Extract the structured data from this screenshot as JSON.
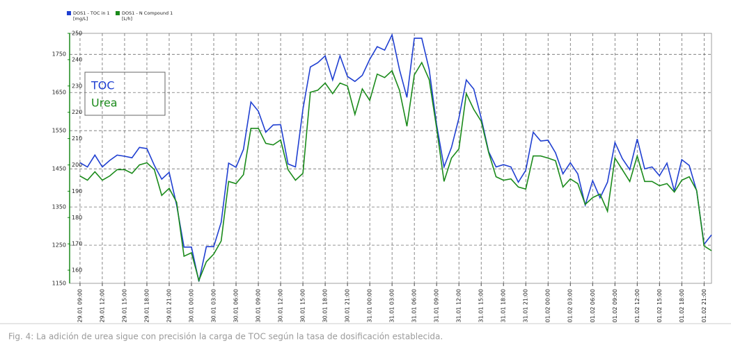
{
  "chart_data": {
    "type": "line",
    "caption": "Fig. 4: La adición de urea sigue con precisión la carga de TOC según la tasa de dosificación establecida.",
    "annotations": [
      {
        "text": "TOC",
        "color": "#1f3fd1"
      },
      {
        "text": "Urea",
        "color": "#1a8a1a"
      }
    ],
    "x": [
      "29.01 09:00",
      "29.01 10:00",
      "29.01 11:00",
      "29.01 12:00",
      "29.01 13:00",
      "29.01 14:00",
      "29.01 15:00",
      "29.01 16:00",
      "29.01 17:00",
      "29.01 18:00",
      "29.01 19:00",
      "29.01 20:00",
      "29.01 21:00",
      "29.01 22:00",
      "29.01 23:00",
      "30.01 00:00",
      "30.01 01:00",
      "30.01 02:00",
      "30.01 03:00",
      "30.01 04:00",
      "30.01 05:00",
      "30.01 06:00",
      "30.01 07:00",
      "30.01 08:00",
      "30.01 09:00",
      "30.01 10:00",
      "30.01 11:00",
      "30.01 12:00",
      "30.01 13:00",
      "30.01 14:00",
      "30.01 15:00",
      "30.01 16:00",
      "30.01 17:00",
      "30.01 18:00",
      "30.01 19:00",
      "30.01 20:00",
      "30.01 21:00",
      "30.01 22:00",
      "30.01 23:00",
      "31.01 00:00",
      "31.01 01:00",
      "31.01 02:00",
      "31.01 03:00",
      "31.01 04:00",
      "31.01 05:00",
      "31.01 06:00",
      "31.01 07:00",
      "31.01 08:00",
      "31.01 09:00",
      "31.01 10:00",
      "31.01 11:00",
      "31.01 12:00",
      "31.01 13:00",
      "31.01 14:00",
      "31.01 15:00",
      "31.01 16:00",
      "31.01 17:00",
      "31.01 18:00",
      "31.01 19:00",
      "31.01 20:00",
      "31.01 21:00",
      "31.01 22:00",
      "31.01 23:00",
      "01.02 00:00",
      "01.02 01:00",
      "01.02 02:00",
      "01.02 03:00",
      "01.02 04:00",
      "01.02 05:00",
      "01.02 06:00",
      "01.02 07:00",
      "01.02 08:00",
      "01.02 09:00",
      "01.02 10:00",
      "01.02 11:00",
      "01.02 12:00",
      "01.02 13:00",
      "01.02 14:00",
      "01.02 15:00",
      "01.02 16:00",
      "01.02 17:00",
      "01.02 18:00",
      "01.02 19:00",
      "01.02 20:00",
      "01.02 21:00",
      "01.02 22:00"
    ],
    "xlim": [
      "29.01 07:36",
      "01.02 22:00"
    ],
    "xticks": [
      "29.01 09:00",
      "29.01 12:00",
      "29.01 15:00",
      "29.01 18:00",
      "29.01 21:00",
      "30.01 00:00",
      "30.01 03:00",
      "30.01 06:00",
      "30.01 09:00",
      "30.01 12:00",
      "30.01 15:00",
      "30.01 18:00",
      "30.01 21:00",
      "31.01 00:00",
      "31.01 03:00",
      "31.01 06:00",
      "31.01 09:00",
      "31.01 12:00",
      "31.01 15:00",
      "31.01 18:00",
      "31.01 21:00",
      "01.02 00:00",
      "01.02 03:00",
      "01.02 06:00",
      "01.02 09:00",
      "01.02 12:00",
      "01.02 15:00",
      "01.02 18:00",
      "01.02 21:00"
    ],
    "ylim": [
      1150,
      1805
    ],
    "yticks": [
      1150,
      1250,
      1350,
      1450,
      1550,
      1650,
      1750
    ],
    "y2lim": [
      155,
      250
    ],
    "y2ticks": [
      160,
      170,
      180,
      190,
      200,
      210,
      220,
      230,
      240,
      250
    ],
    "grid": true,
    "series": [
      {
        "name": "DOS1 - TOC in 1",
        "unit": "[mg/L]",
        "color": "#1f3fd1",
        "axis": "y",
        "values": [
          1466,
          1455,
          1486,
          1455,
          1472,
          1486,
          1483,
          1479,
          1506,
          1503,
          1459,
          1423,
          1441,
          1355,
          1245,
          1245,
          1155,
          1246,
          1246,
          1310,
          1465,
          1454,
          1501,
          1625,
          1601,
          1546,
          1565,
          1566,
          1463,
          1455,
          1606,
          1717,
          1728,
          1746,
          1683,
          1746,
          1692,
          1679,
          1695,
          1737,
          1770,
          1761,
          1801,
          1710,
          1637,
          1792,
          1792,
          1710,
          1565,
          1455,
          1506,
          1583,
          1683,
          1659,
          1583,
          1495,
          1455,
          1461,
          1455,
          1415,
          1446,
          1546,
          1523,
          1525,
          1492,
          1437,
          1466,
          1437,
          1355,
          1419,
          1374,
          1415,
          1519,
          1477,
          1448,
          1528,
          1450,
          1455,
          1432,
          1465,
          1392,
          1474,
          1459,
          1392,
          1252,
          1277
        ]
      },
      {
        "name": "DOS1 - N Compound 1",
        "unit": "[L/h]",
        "color": "#1a8a1a",
        "axis": "y2",
        "values": [
          195.8,
          194.2,
          197.4,
          194.2,
          195.8,
          198.2,
          198.2,
          196.8,
          200.0,
          200.8,
          198.2,
          188.4,
          191.1,
          185.8,
          165.3,
          166.6,
          156.1,
          163.2,
          166.1,
          171.1,
          193.7,
          192.9,
          196.3,
          213.9,
          213.9,
          208.2,
          207.6,
          209.5,
          198.2,
          194.2,
          196.8,
          227.6,
          228.4,
          231.1,
          227.1,
          231.1,
          230.0,
          219.2,
          228.9,
          224.5,
          234.5,
          233.2,
          235.8,
          228.4,
          214.7,
          234.2,
          238.9,
          232.4,
          213.9,
          193.7,
          202.6,
          206.1,
          227.1,
          221.1,
          216.6,
          204.7,
          195.5,
          194.2,
          194.7,
          191.6,
          190.8,
          203.4,
          203.4,
          202.6,
          201.6,
          191.6,
          194.7,
          192.9,
          185.0,
          187.6,
          188.9,
          182.4,
          202.6,
          198.2,
          193.7,
          203.4,
          193.7,
          193.7,
          192.1,
          192.9,
          189.7,
          194.2,
          195.5,
          190.3,
          169.2,
          167.4
        ]
      }
    ]
  }
}
